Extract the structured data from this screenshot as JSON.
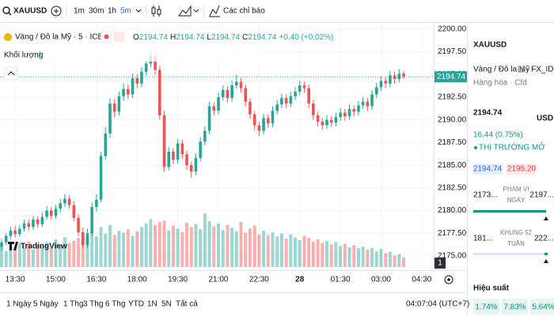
{
  "toolbar": {
    "symbol": "XAUUSD",
    "intervals": [
      "1m",
      "30m",
      "1h",
      "5m"
    ],
    "indicators": "Các chỉ báo"
  },
  "chart": {
    "type": "candlestick",
    "title": "Vàng / Đô la Mỹ · 5 · ICE",
    "ohlc_legend": [
      {
        "label": "O",
        "value": "2194.74"
      },
      {
        "label": "H",
        "value": "2194.74"
      },
      {
        "label": "L",
        "value": "2194.74"
      },
      {
        "label": "C",
        "value": "2194.74"
      }
    ],
    "change": "+0.40 (+0.02%)",
    "volume_title": "Khối lượng",
    "volume_legend": "1",
    "volume_tag": "1",
    "watermark": "TradingView",
    "last_price": {
      "value": 2194.74,
      "label": "2194.74"
    },
    "up_color": "#26a69a",
    "down_color": "#ef5350",
    "grid": true,
    "ylim": [
      2173.6,
      2200.6
    ],
    "yticks": [
      {
        "value": 2175,
        "label": "2175.00"
      },
      {
        "value": 2177.5,
        "label": "2177.50"
      },
      {
        "value": 2180,
        "label": "2180.00"
      },
      {
        "value": 2182.5,
        "label": "2182.50"
      },
      {
        "value": 2185,
        "label": "2185.00"
      },
      {
        "value": 2187.5,
        "label": "2187.50"
      },
      {
        "value": 2190,
        "label": "2190.00"
      },
      {
        "value": 2192.5,
        "label": "2192.50"
      },
      {
        "value": 2195,
        "label": "2195.00"
      },
      {
        "value": 2197.5,
        "label": "2197.50"
      },
      {
        "value": 2200,
        "label": "2200.00"
      }
    ],
    "xlim": [
      -0.35,
      95.65
    ],
    "xticks": [
      {
        "value": 3,
        "label": "13:30"
      },
      {
        "value": 12,
        "label": "15:00"
      },
      {
        "value": 21,
        "label": "16:30"
      },
      {
        "value": 30,
        "label": "18:00"
      },
      {
        "value": 39,
        "label": "19:30"
      },
      {
        "value": 48,
        "label": "21:00"
      },
      {
        "value": 57,
        "label": "22:30"
      },
      {
        "value": 66,
        "label": "28"
      },
      {
        "value": 75,
        "label": "01:30"
      },
      {
        "value": 84,
        "label": "03:00"
      },
      {
        "value": 93,
        "label": "04:30"
      }
    ],
    "candles": [
      [
        2176.0,
        2176.9,
        2175.6,
        2176.5
      ],
      [
        2176.5,
        2177.5,
        2176.2,
        2177.2
      ],
      [
        2177.2,
        2178.2,
        2176.9,
        2177.8
      ],
      [
        2177.8,
        2178.3,
        2177.0,
        2177.4
      ],
      [
        2177.4,
        2178.4,
        2177.1,
        2178.0
      ],
      [
        2178.0,
        2179.0,
        2177.7,
        2178.6
      ],
      [
        2178.6,
        2179.0,
        2177.8,
        2178.2
      ],
      [
        2178.2,
        2179.4,
        2177.9,
        2179.0
      ],
      [
        2179.0,
        2179.4,
        2178.1,
        2178.5
      ],
      [
        2178.5,
        2179.8,
        2178.2,
        2179.3
      ],
      [
        2179.3,
        2180.5,
        2179.0,
        2180.0
      ],
      [
        2180.0,
        2180.4,
        2179.0,
        2179.4
      ],
      [
        2179.4,
        2180.6,
        2179.1,
        2180.2
      ],
      [
        2180.2,
        2181.3,
        2179.8,
        2180.8
      ],
      [
        2180.8,
        2181.8,
        2180.4,
        2181.3
      ],
      [
        2181.3,
        2181.7,
        2180.2,
        2180.6
      ],
      [
        2180.6,
        2181.0,
        2178.8,
        2179.2
      ],
      [
        2179.2,
        2179.6,
        2177.2,
        2177.6
      ],
      [
        2177.6,
        2178.1,
        2175.8,
        2176.2
      ],
      [
        2176.2,
        2178.0,
        2175.9,
        2177.5
      ],
      [
        2177.5,
        2180.9,
        2177.2,
        2180.4
      ],
      [
        2180.4,
        2181.8,
        2179.9,
        2181.2
      ],
      [
        2181.2,
        2186.5,
        2180.9,
        2186.0
      ],
      [
        2186.0,
        2189.2,
        2185.6,
        2188.5
      ],
      [
        2188.5,
        2192.4,
        2188.0,
        2191.8
      ],
      [
        2191.8,
        2192.3,
        2190.3,
        2190.9
      ],
      [
        2190.9,
        2193.1,
        2190.5,
        2192.6
      ],
      [
        2192.6,
        2194.0,
        2192.1,
        2193.4
      ],
      [
        2193.4,
        2193.9,
        2192.3,
        2192.8
      ],
      [
        2192.8,
        2195.1,
        2192.4,
        2194.6
      ],
      [
        2194.6,
        2195.0,
        2193.5,
        2194.0
      ],
      [
        2194.0,
        2195.8,
        2193.6,
        2195.3
      ],
      [
        2195.3,
        2196.8,
        2194.9,
        2196.2
      ],
      [
        2196.2,
        2197.6,
        2195.8,
        2197.0
      ],
      [
        2197.0,
        2197.4,
        2195.0,
        2195.5
      ],
      [
        2195.5,
        2195.9,
        2190.0,
        2190.5
      ],
      [
        2190.5,
        2191.0,
        2184.3,
        2184.8
      ],
      [
        2184.8,
        2187.0,
        2184.4,
        2186.5
      ],
      [
        2186.5,
        2186.9,
        2185.1,
        2185.6
      ],
      [
        2185.6,
        2187.9,
        2185.2,
        2187.4
      ],
      [
        2187.4,
        2187.8,
        2185.7,
        2186.2
      ],
      [
        2186.2,
        2186.6,
        2184.5,
        2185.0
      ],
      [
        2185.0,
        2185.4,
        2183.6,
        2184.3
      ],
      [
        2184.3,
        2186.3,
        2183.9,
        2185.8
      ],
      [
        2185.8,
        2188.1,
        2185.4,
        2187.6
      ],
      [
        2187.6,
        2189.3,
        2187.2,
        2188.8
      ],
      [
        2188.8,
        2192.0,
        2188.4,
        2191.5
      ],
      [
        2191.5,
        2191.9,
        2190.5,
        2191.0
      ],
      [
        2191.0,
        2193.0,
        2190.6,
        2192.5
      ],
      [
        2192.5,
        2193.8,
        2192.1,
        2193.3
      ],
      [
        2193.3,
        2193.7,
        2191.9,
        2192.4
      ],
      [
        2192.4,
        2194.3,
        2192.0,
        2193.8
      ],
      [
        2193.8,
        2195.0,
        2193.4,
        2194.2
      ],
      [
        2194.2,
        2194.6,
        2193.0,
        2193.5
      ],
      [
        2193.5,
        2193.9,
        2191.5,
        2192.0
      ],
      [
        2192.0,
        2192.4,
        2190.1,
        2190.6
      ],
      [
        2190.6,
        2191.0,
        2188.9,
        2189.4
      ],
      [
        2189.4,
        2189.8,
        2188.2,
        2188.8
      ],
      [
        2188.8,
        2190.7,
        2188.4,
        2190.2
      ],
      [
        2190.2,
        2190.6,
        2189.1,
        2189.6
      ],
      [
        2189.6,
        2191.5,
        2189.2,
        2191.0
      ],
      [
        2191.0,
        2192.2,
        2190.6,
        2191.7
      ],
      [
        2191.7,
        2192.9,
        2191.3,
        2192.4
      ],
      [
        2192.4,
        2192.8,
        2191.3,
        2191.8
      ],
      [
        2191.8,
        2193.1,
        2191.4,
        2192.6
      ],
      [
        2192.6,
        2193.6,
        2192.2,
        2193.1
      ],
      [
        2193.1,
        2194.3,
        2192.7,
        2193.8
      ],
      [
        2193.8,
        2194.2,
        2193.0,
        2193.5
      ],
      [
        2193.5,
        2193.9,
        2191.3,
        2191.8
      ],
      [
        2191.8,
        2192.2,
        2190.0,
        2190.5
      ],
      [
        2190.5,
        2190.9,
        2189.3,
        2189.8
      ],
      [
        2189.8,
        2190.2,
        2188.9,
        2189.4
      ],
      [
        2189.4,
        2190.5,
        2189.0,
        2190.0
      ],
      [
        2190.0,
        2190.4,
        2189.2,
        2189.7
      ],
      [
        2189.7,
        2190.8,
        2189.3,
        2190.3
      ],
      [
        2190.3,
        2191.3,
        2189.9,
        2190.8
      ],
      [
        2190.8,
        2191.2,
        2189.9,
        2190.4
      ],
      [
        2190.4,
        2191.7,
        2190.0,
        2191.2
      ],
      [
        2191.2,
        2191.6,
        2190.4,
        2190.9
      ],
      [
        2190.9,
        2192.1,
        2190.5,
        2191.6
      ],
      [
        2191.6,
        2192.5,
        2191.2,
        2192.0
      ],
      [
        2192.0,
        2192.4,
        2191.0,
        2191.5
      ],
      [
        2191.5,
        2193.3,
        2191.1,
        2192.8
      ],
      [
        2192.8,
        2194.1,
        2192.4,
        2193.6
      ],
      [
        2193.6,
        2194.8,
        2193.2,
        2194.3
      ],
      [
        2194.3,
        2194.7,
        2193.5,
        2194.0
      ],
      [
        2194.0,
        2195.4,
        2193.6,
        2194.9
      ],
      [
        2194.9,
        2195.3,
        2194.0,
        2194.5
      ],
      [
        2194.5,
        2195.6,
        2194.1,
        2195.1
      ],
      [
        2195.1,
        2195.4,
        2194.5,
        2194.74
      ]
    ],
    "volume": [
      28,
      22,
      30,
      25,
      33,
      27,
      35,
      24,
      31,
      29,
      34,
      26,
      38,
      30,
      41,
      33,
      36,
      40,
      45,
      38,
      48,
      42,
      55,
      46,
      58,
      44,
      50,
      47,
      52,
      43,
      49,
      55,
      60,
      66,
      58,
      62,
      64,
      50,
      57,
      53,
      48,
      61,
      55,
      59,
      52,
      74,
      63,
      56,
      60,
      51,
      58,
      54,
      49,
      62,
      47,
      53,
      57,
      45,
      50,
      44,
      48,
      42,
      46,
      39,
      45,
      41,
      37,
      43,
      40,
      35,
      38,
      33,
      36,
      31,
      34,
      29,
      32,
      27,
      30,
      26,
      28,
      24,
      26,
      22,
      25,
      19,
      21,
      16,
      18,
      13
    ]
  },
  "side_panel": {
    "symbol": "XAUUSD",
    "name": "Vàng / Đô la Mỹ",
    "exchange": "· FX_IDC",
    "category": "Hàng hóa · Cfd",
    "price": "2194.74",
    "currency": "USD",
    "change": "16.44 (0.75%)",
    "status": "THỊ TRƯỜNG MỞ",
    "bid": "2194.74",
    "ask": "2195.20",
    "day_range": {
      "low": "2173...",
      "label": [
        "PHẠM VI",
        "NGÀY"
      ],
      "high": "2197..."
    },
    "week52_range": {
      "low": "181...",
      "label": [
        "KHUNG 52",
        "TUẦN"
      ],
      "high": "222..."
    },
    "performance_title": "Hiệu suất",
    "performance": [
      "1.74%",
      "7.83%",
      "5.64%"
    ]
  },
  "bottom_bar": {
    "ranges": [
      "1 Ngày",
      "5 Ngày",
      "1 Thg",
      "3 Thg",
      "6 Thg",
      "YTD",
      "1N",
      "5N",
      "Tất cả"
    ],
    "clock": "04:07:04 (UTC+7)"
  }
}
